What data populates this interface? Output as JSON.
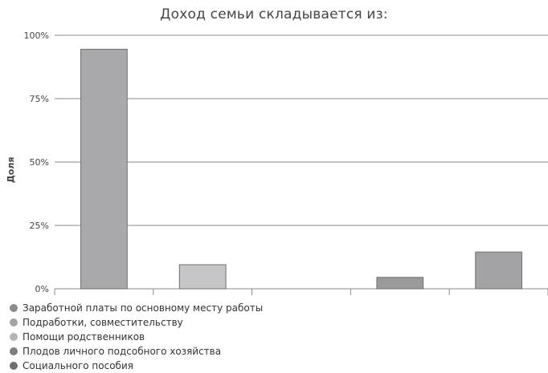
{
  "chart_data": {
    "type": "bar",
    "title": "Доход семьи складывается из:",
    "ylabel": "Доля",
    "xlabel": "",
    "ylim": [
      0,
      100
    ],
    "yticks": [
      0,
      25,
      50,
      75,
      100
    ],
    "ytick_labels": [
      "0%",
      "25%",
      "50%",
      "75%",
      "100%"
    ],
    "grid": true,
    "legend_position": "bottom-left",
    "categories": [
      "Заработной платы по основному месту работы",
      "Подработки, совместительству",
      "Помощи родственников",
      "Плодов личного подсобного хозяйства",
      "Социального пособия"
    ],
    "values": [
      94.5,
      9.5,
      0,
      4.5,
      14.5
    ],
    "colors": [
      "#a9a9ac",
      "#c6c6c8",
      "#bdbdbf",
      "#9a9a9d",
      "#a3a3a6"
    ],
    "legend_colors": [
      "#8c8c8f",
      "#a4a4a7",
      "#b4b4b6",
      "#7e7e81",
      "#6f6f72"
    ]
  }
}
